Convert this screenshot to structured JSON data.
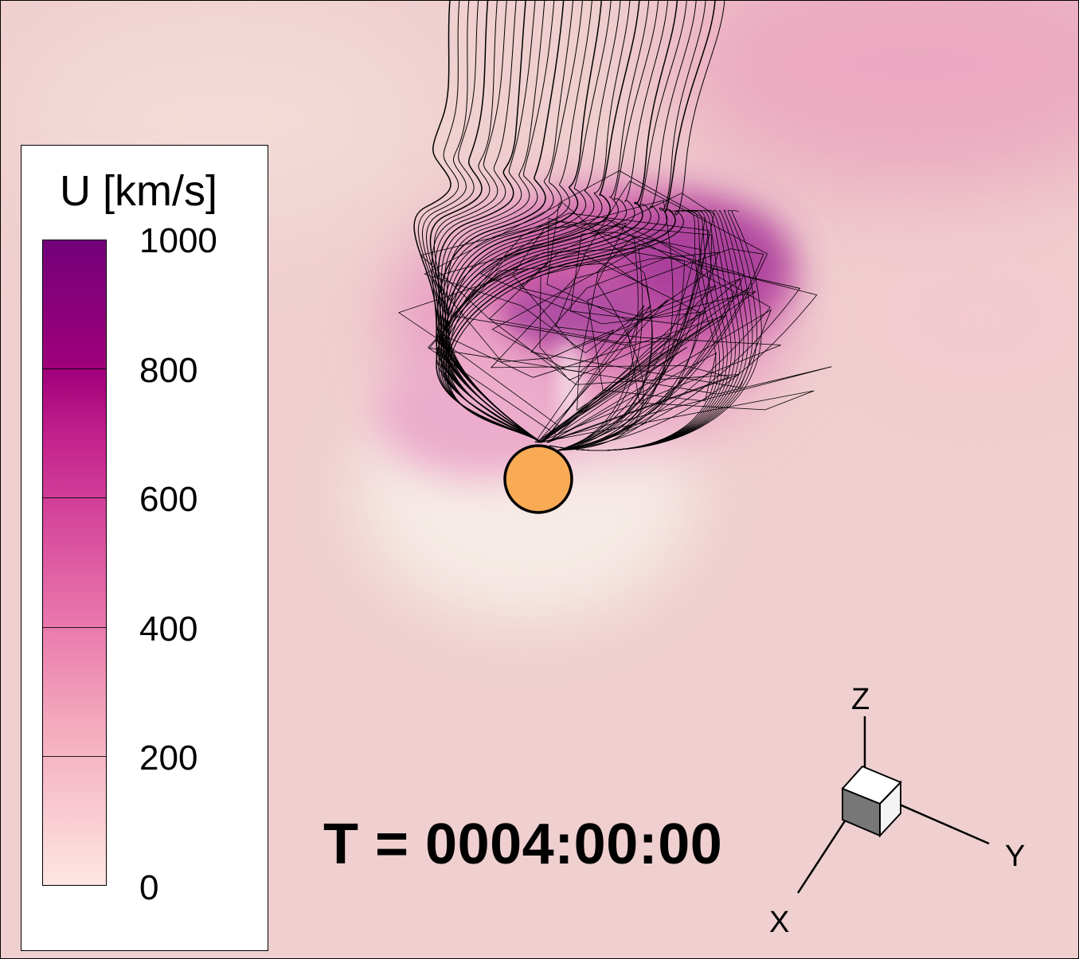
{
  "legend": {
    "title": "U [km/s]",
    "ticks": [
      "1000",
      "800",
      "600",
      "400",
      "200",
      "0"
    ]
  },
  "time_label": "T = 0004:00:00",
  "axes": {
    "x": "X",
    "y": "Y",
    "z": "Z"
  },
  "colors": {
    "background": "#efcfcf",
    "sun": "#f9aa55",
    "colormap_high": "#73007a",
    "colormap_low": "#fde6e2"
  }
}
